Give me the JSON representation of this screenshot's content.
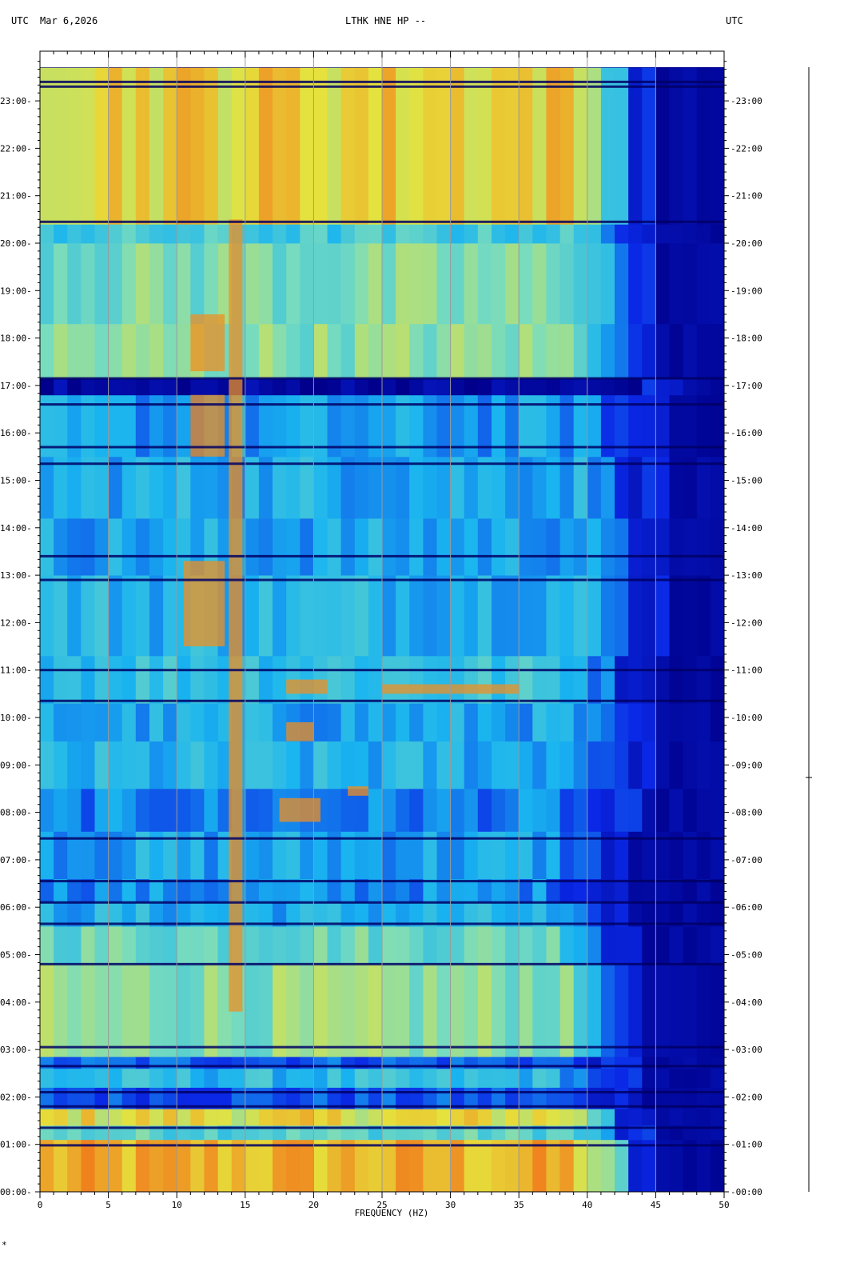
{
  "header": {
    "left_timezone": "UTC",
    "date": "Mar 6,2026",
    "station": "LTHK HNE HP --",
    "right_timezone": "UTC"
  },
  "colors": {
    "background_low": "#00008c",
    "mid": "#19b4f0",
    "high_yellow": "#e6e23c",
    "peak_red": "#d21414",
    "grid": "#9a9a9a"
  },
  "chart_data": {
    "type": "heatmap",
    "title": "LTHK HNE HP --",
    "xlabel": "FREQUENCY (HZ)",
    "ylabel": "",
    "xlim": [
      0,
      50
    ],
    "ylim_hours": [
      0,
      23.7
    ],
    "x_ticks": [
      "0",
      "5",
      "10",
      "15",
      "20",
      "25",
      "30",
      "35",
      "40",
      "45",
      "50"
    ],
    "y_ticks": [
      "00:00",
      "01:00",
      "02:00",
      "03:00",
      "04:00",
      "05:00",
      "06:00",
      "07:00",
      "08:00",
      "09:00",
      "10:00",
      "11:00",
      "12:00",
      "13:00",
      "14:00",
      "15:00",
      "16:00",
      "17:00",
      "18:00",
      "19:00",
      "20:00",
      "21:00",
      "22:00",
      "23:00"
    ],
    "energy_bands": [
      {
        "t0": 0.0,
        "t1": 1.1,
        "level": 0.82,
        "fmax": 42.5
      },
      {
        "t0": 1.1,
        "t1": 1.4,
        "level": 0.55,
        "fmax": 42
      },
      {
        "t0": 1.4,
        "t1": 1.75,
        "level": 0.75,
        "fmax": 42
      },
      {
        "t0": 1.75,
        "t1": 2.2,
        "level": 0.28,
        "fmax": 41
      },
      {
        "t0": 2.2,
        "t1": 2.6,
        "level": 0.45,
        "fmax": 41
      },
      {
        "t0": 2.6,
        "t1": 2.85,
        "level": 0.3,
        "fmax": 41
      },
      {
        "t0": 2.85,
        "t1": 4.8,
        "level": 0.62,
        "fmax": 41.5
      },
      {
        "t0": 4.8,
        "t1": 5.6,
        "level": 0.58,
        "fmax": 41
      },
      {
        "t0": 5.6,
        "t1": 6.1,
        "level": 0.42,
        "fmax": 40
      },
      {
        "t0": 6.1,
        "t1": 6.6,
        "level": 0.36,
        "fmax": 40
      },
      {
        "t0": 6.6,
        "t1": 7.6,
        "level": 0.4,
        "fmax": 40.5
      },
      {
        "t0": 7.6,
        "t1": 8.5,
        "level": 0.34,
        "fmax": 41
      },
      {
        "t0": 8.5,
        "t1": 9.5,
        "level": 0.42,
        "fmax": 42
      },
      {
        "t0": 9.5,
        "t1": 10.3,
        "level": 0.4,
        "fmax": 42
      },
      {
        "t0": 10.3,
        "t1": 11.3,
        "level": 0.48,
        "fmax": 42
      },
      {
        "t0": 11.3,
        "t1": 13.0,
        "level": 0.44,
        "fmax": 43
      },
      {
        "t0": 13.0,
        "t1": 14.2,
        "level": 0.4,
        "fmax": 43
      },
      {
        "t0": 14.2,
        "t1": 15.5,
        "level": 0.42,
        "fmax": 43
      },
      {
        "t0": 15.5,
        "t1": 16.8,
        "level": 0.38,
        "fmax": 43
      },
      {
        "t0": 16.8,
        "t1": 17.15,
        "level": 0.04,
        "fmax": 44
      },
      {
        "t0": 17.15,
        "t1": 18.3,
        "level": 0.62,
        "fmax": 42.5
      },
      {
        "t0": 18.3,
        "t1": 20.0,
        "level": 0.6,
        "fmax": 42.5
      },
      {
        "t0": 20.0,
        "t1": 20.4,
        "level": 0.5,
        "fmax": 42.5
      },
      {
        "t0": 20.4,
        "t1": 23.7,
        "level": 0.78,
        "fmax": 42.5
      }
    ],
    "hot_features": [
      {
        "f0": 10.5,
        "f1": 13.5,
        "t0": 11.5,
        "t1": 13.3
      },
      {
        "f0": 13.8,
        "f1": 14.8,
        "t0": 3.8,
        "t1": 20.5
      },
      {
        "f0": 17.5,
        "f1": 20.5,
        "t0": 7.8,
        "t1": 8.3
      },
      {
        "f0": 18.0,
        "f1": 20.0,
        "t0": 9.5,
        "t1": 9.9
      },
      {
        "f0": 18.0,
        "f1": 21.0,
        "t0": 10.5,
        "t1": 10.8
      },
      {
        "f0": 22.5,
        "f1": 24.0,
        "t0": 8.35,
        "t1": 8.55
      },
      {
        "f0": 25.0,
        "f1": 35.0,
        "t0": 10.5,
        "t1": 10.7
      },
      {
        "f0": 11.0,
        "f1": 13.5,
        "t0": 15.5,
        "t1": 16.8
      },
      {
        "f0": 11.0,
        "f1": 13.5,
        "t0": 17.3,
        "t1": 18.5
      }
    ],
    "dark_lines_hours": [
      0.98,
      1.35,
      1.8,
      2.1,
      2.65,
      3.05,
      4.8,
      5.65,
      6.1,
      6.55,
      7.45,
      10.35,
      11.0,
      12.9,
      13.4,
      15.35,
      15.7,
      16.6,
      17.15,
      20.45,
      23.3,
      23.4
    ]
  }
}
